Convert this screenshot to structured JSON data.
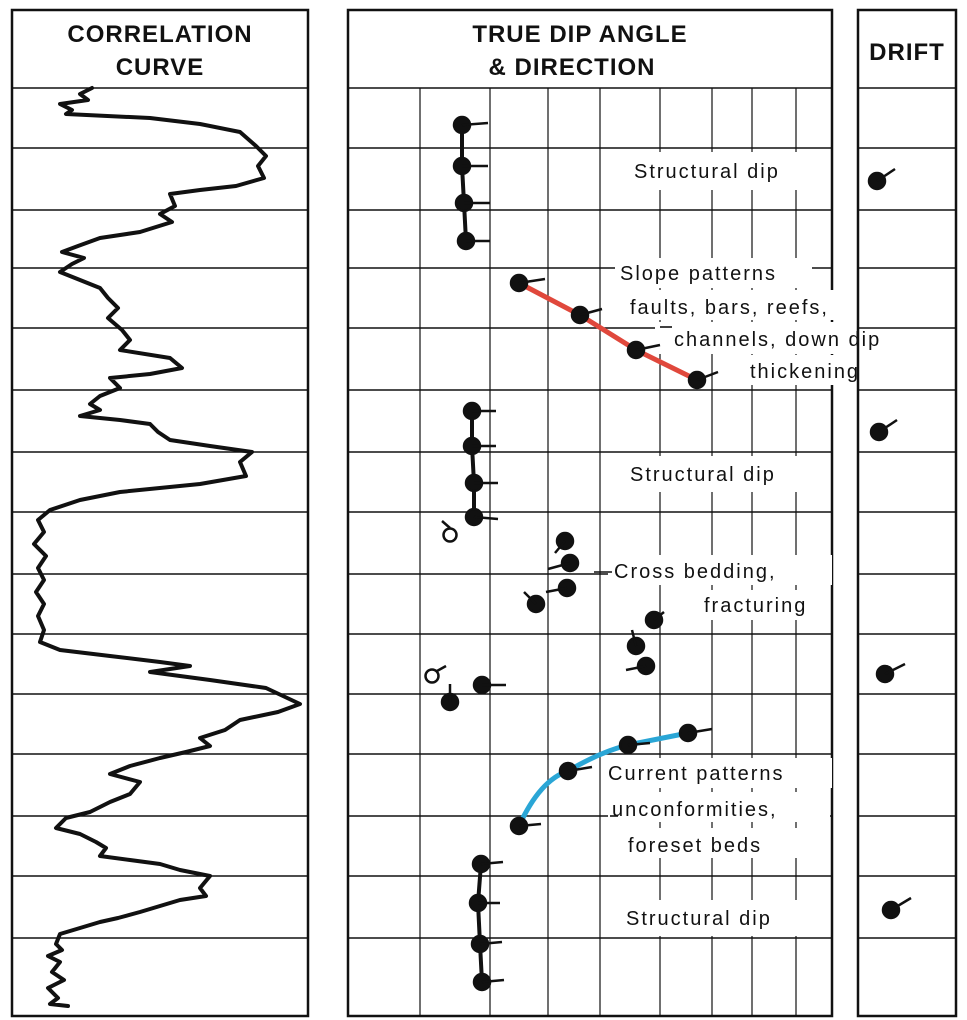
{
  "columns": {
    "correlation": {
      "title_line1": "CORRELATION",
      "title_line2": "CURVE"
    },
    "dip": {
      "title_line1": "TRUE DIP ANGLE",
      "title_line2": "& DIRECTION"
    },
    "drift": {
      "title": "DRIFT"
    }
  },
  "annotations": {
    "structural_dip_1": "Structural dip",
    "slope_1": "Slope patterns",
    "slope_2": "faults, bars, reefs,",
    "slope_3": "channels, down dip",
    "slope_4": "thickening",
    "structural_dip_2": "Structural dip",
    "cross_1": "Cross bedding,",
    "cross_2": "fracturing",
    "current_1": "Current patterns",
    "current_2": "unconformities,",
    "current_3": "foreset beds",
    "structural_dip_3": "Structural dip"
  },
  "colors": {
    "ink": "#111111",
    "slope_line": "#e0483c",
    "current_line": "#2aa6d6"
  }
}
